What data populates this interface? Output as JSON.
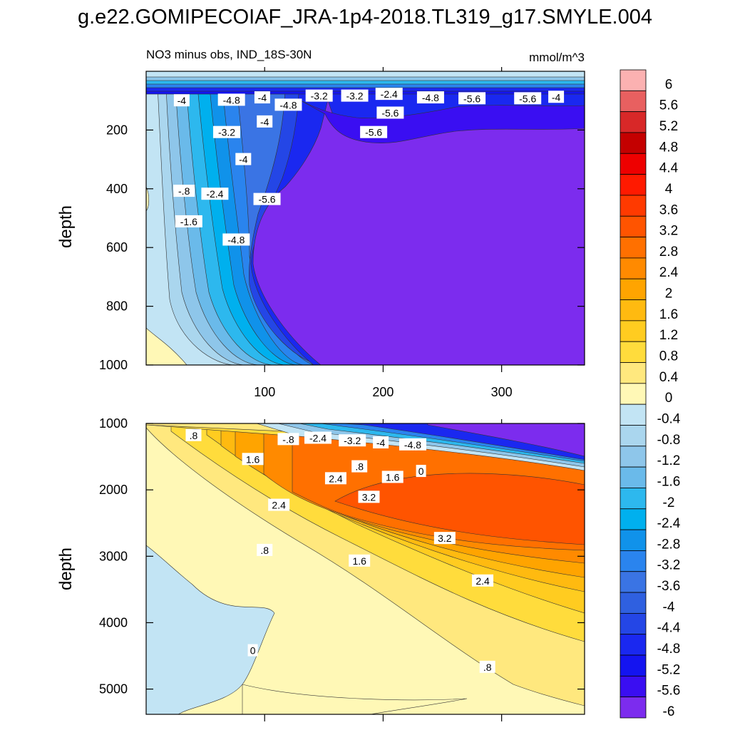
{
  "title": "g.e22.GOMIPECOIAF_JRA-1p4-2018.TL319_g17.SMYLE.004",
  "chart_data": [
    {
      "type": "contour",
      "subtitle": "NO3 minus obs, IND_18S-30N",
      "units": "mmol/m^3",
      "ylabel": "depth",
      "xlim": [
        0,
        370
      ],
      "ylim": [
        1000,
        0
      ],
      "yticks": [
        200,
        400,
        600,
        800,
        1000
      ],
      "xticks": [
        100,
        200,
        300
      ],
      "contour_labels": [
        {
          "text": "-4",
          "x": 30,
          "y": 100
        },
        {
          "text": "-4.8",
          "x": 72,
          "y": 98
        },
        {
          "text": "-4",
          "x": 98,
          "y": 90
        },
        {
          "text": "-4.8",
          "x": 120,
          "y": 115
        },
        {
          "text": "-3.2",
          "x": 146,
          "y": 84
        },
        {
          "text": "-3.2",
          "x": 176,
          "y": 84
        },
        {
          "text": "-2.4",
          "x": 205,
          "y": 78
        },
        {
          "text": "-4.8",
          "x": 240,
          "y": 90
        },
        {
          "text": "-5.6",
          "x": 275,
          "y": 93
        },
        {
          "text": "-5.6",
          "x": 322,
          "y": 93
        },
        {
          "text": "-4",
          "x": 346,
          "y": 88
        },
        {
          "text": "-5.6",
          "x": 206,
          "y": 142
        },
        {
          "text": "-4",
          "x": 100,
          "y": 172
        },
        {
          "text": "-3.2",
          "x": 68,
          "y": 208
        },
        {
          "text": "-5.6",
          "x": 192,
          "y": 208
        },
        {
          "text": "-4",
          "x": 82,
          "y": 300
        },
        {
          "text": "-.8",
          "x": 32,
          "y": 408
        },
        {
          "text": "-2.4",
          "x": 58,
          "y": 418
        },
        {
          "text": "-5.6",
          "x": 102,
          "y": 436
        },
        {
          "text": "-1.6",
          "x": 36,
          "y": 512
        },
        {
          "text": "-4.8",
          "x": 76,
          "y": 574
        }
      ]
    },
    {
      "type": "contour",
      "ylabel": "depth",
      "xlim": [
        0,
        370
      ],
      "ylim": [
        5380,
        1000
      ],
      "yticks": [
        1000,
        2000,
        3000,
        4000,
        5000
      ],
      "contour_labels": [
        {
          "text": ".8",
          "x": 40,
          "y": 1180
        },
        {
          "text": "-.8",
          "x": 120,
          "y": 1240
        },
        {
          "text": "-2.4",
          "x": 145,
          "y": 1220
        },
        {
          "text": "-3.2",
          "x": 174,
          "y": 1260
        },
        {
          "text": "-4",
          "x": 198,
          "y": 1290
        },
        {
          "text": "-4.8",
          "x": 225,
          "y": 1320
        },
        {
          "text": "1.6",
          "x": 90,
          "y": 1540
        },
        {
          "text": ".8",
          "x": 180,
          "y": 1650
        },
        {
          "text": "1.6",
          "x": 208,
          "y": 1810
        },
        {
          "text": "0",
          "x": 232,
          "y": 1720
        },
        {
          "text": "2.4",
          "x": 160,
          "y": 1830
        },
        {
          "text": "3.2",
          "x": 188,
          "y": 2110
        },
        {
          "text": "2.4",
          "x": 112,
          "y": 2230
        },
        {
          "text": "3.2",
          "x": 252,
          "y": 2730
        },
        {
          "text": ".8",
          "x": 100,
          "y": 2910
        },
        {
          "text": "1.6",
          "x": 180,
          "y": 3070
        },
        {
          "text": "2.4",
          "x": 284,
          "y": 3370
        },
        {
          "text": "0",
          "x": 90,
          "y": 4420
        },
        {
          "text": ".8",
          "x": 288,
          "y": 4670
        }
      ]
    }
  ],
  "colorbar": {
    "labels": [
      "6",
      "5.6",
      "5.2",
      "4.8",
      "4.4",
      "4",
      "3.6",
      "3.2",
      "2.8",
      "2.4",
      "2",
      "1.6",
      "1.2",
      "0.8",
      "0.4",
      "0",
      "-0.4",
      "-0.8",
      "-1.2",
      "-1.6",
      "-2",
      "-2.4",
      "-2.8",
      "-3.2",
      "-3.6",
      "-4",
      "-4.4",
      "-4.8",
      "-5.2",
      "-5.6",
      "-6"
    ],
    "colors_top_to_bottom": [
      "#fbb1b1",
      "#e86060",
      "#d82828",
      "#c40000",
      "#ee0000",
      "#ff1a00",
      "#ff3a00",
      "#ff5400",
      "#ff7000",
      "#ff8a00",
      "#ffa400",
      "#ffba10",
      "#ffcc20",
      "#ffdc3c",
      "#ffe87e",
      "#fff8b6",
      "#c2e4f4",
      "#aad6ee",
      "#8ec6ea",
      "#6abaea",
      "#2db8ee",
      "#00b0ee",
      "#1092ea",
      "#2a84ee",
      "#3a74e4",
      "#2f60e0",
      "#2446e6",
      "#1a28f0",
      "#1414f0",
      "#3a0ef2",
      "#7c2cee"
    ]
  }
}
